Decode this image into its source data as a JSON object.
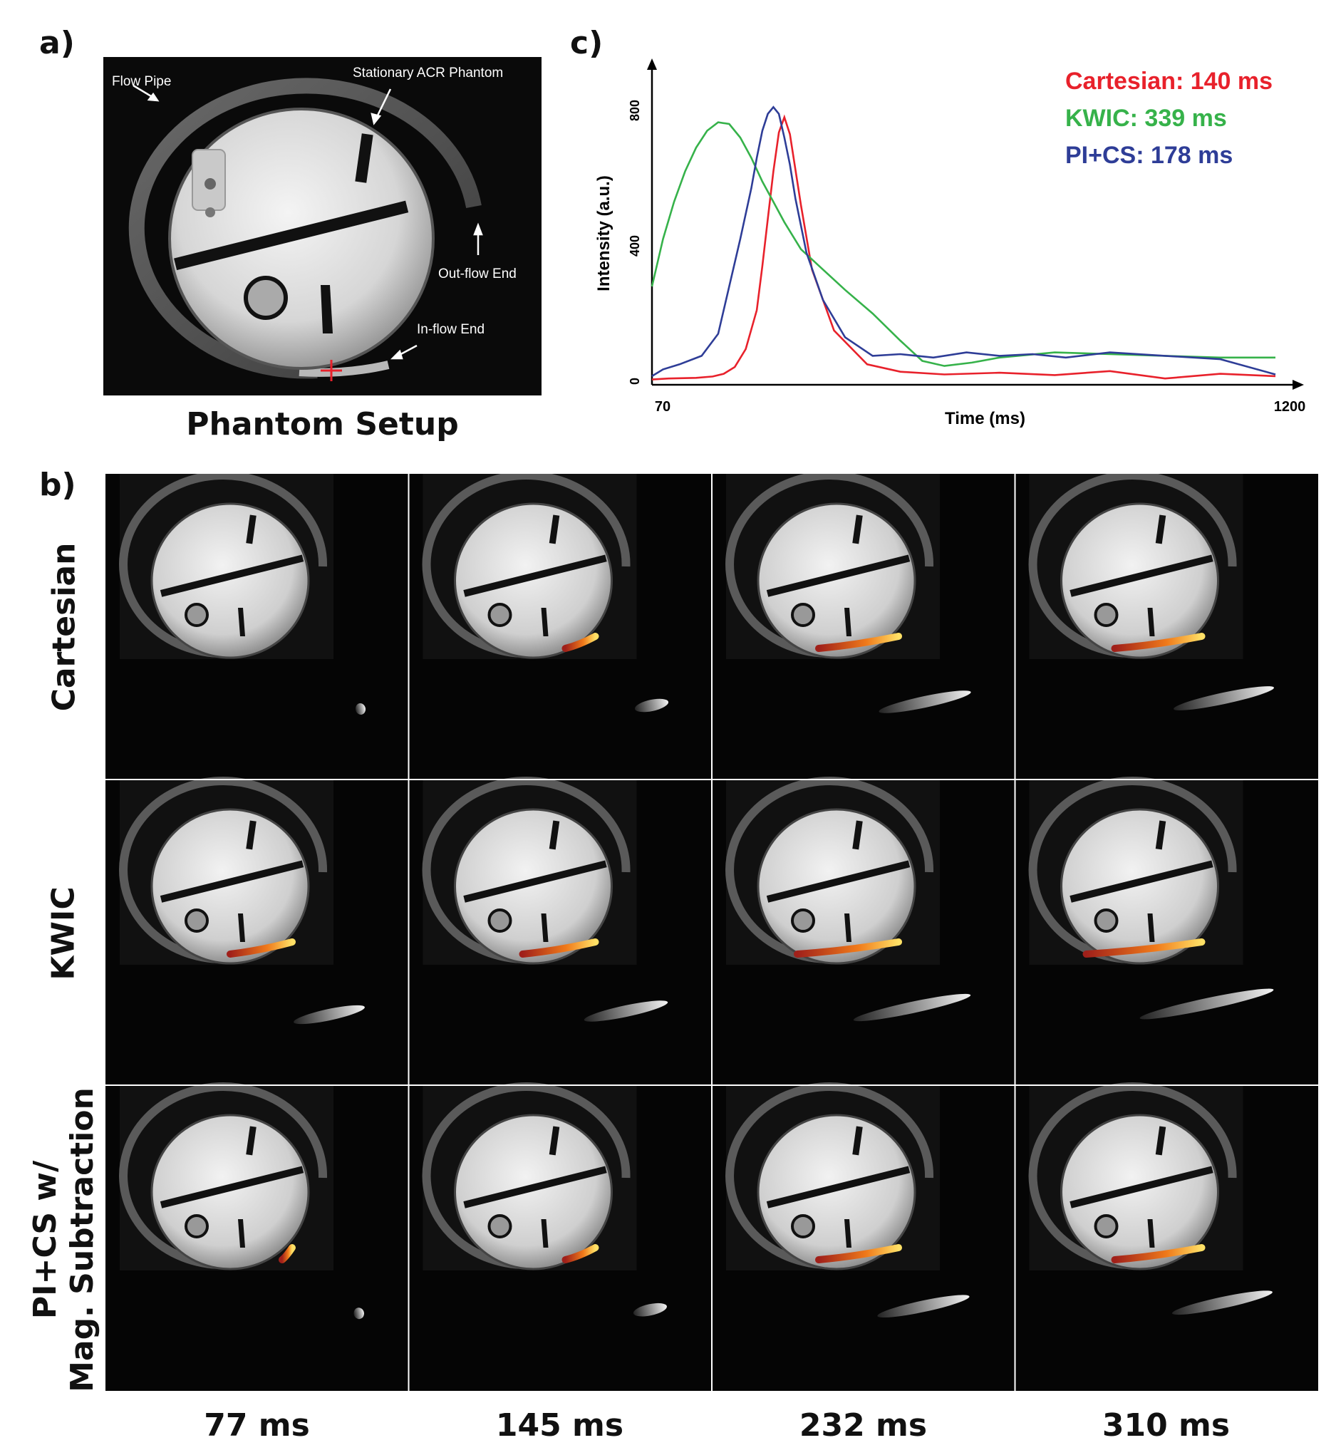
{
  "panels": {
    "a": "a)",
    "b": "b)",
    "c": "c)"
  },
  "phantom": {
    "caption": "Phantom Setup",
    "annotations": {
      "flow_pipe": "Flow Pipe",
      "stationary": "Stationary ACR Phantom",
      "outflow": "Out-flow End",
      "inflow": "In-flow End"
    }
  },
  "grid": {
    "rows": [
      "Cartesian",
      "KWIC",
      "PI+CS w/\nMag. Subtraction"
    ],
    "columns": [
      "77 ms",
      "145 ms",
      "232 ms",
      "310 ms"
    ]
  },
  "colors": {
    "cartesian": "#e8212b",
    "kwic": "#36b24a",
    "pics": "#2e3d97"
  },
  "chart_data": {
    "type": "line",
    "title": "",
    "xlabel": "Time (ms)",
    "ylabel": "Intensity (a.u.)",
    "xlim": [
      70,
      1200
    ],
    "ylim": [
      0,
      800
    ],
    "x_tick_labels": [
      "70",
      "1200"
    ],
    "y_tick_labels": [
      "0",
      "400",
      "800"
    ],
    "legend_position": "top-right",
    "series": [
      {
        "name": "Cartesian: 140 ms",
        "color": "#e8212b",
        "x": [
          70,
          100,
          150,
          180,
          200,
          220,
          240,
          260,
          270,
          280,
          290,
          300,
          310,
          320,
          340,
          360,
          400,
          460,
          520,
          600,
          700,
          800,
          900,
          1000,
          1100,
          1200
        ],
        "y": [
          5,
          8,
          10,
          14,
          22,
          42,
          95,
          210,
          340,
          480,
          620,
          735,
          780,
          730,
          520,
          330,
          150,
          50,
          28,
          20,
          25,
          18,
          30,
          8,
          22,
          15
        ]
      },
      {
        "name": "KWIC: 339 ms",
        "color": "#36b24a",
        "x": [
          70,
          90,
          110,
          130,
          150,
          170,
          190,
          210,
          230,
          250,
          270,
          290,
          310,
          340,
          380,
          420,
          470,
          520,
          560,
          600,
          650,
          700,
          800,
          900,
          1000,
          1100,
          1200
        ],
        "y": [
          280,
          420,
          530,
          620,
          690,
          740,
          765,
          760,
          720,
          660,
          590,
          530,
          470,
          390,
          330,
          270,
          200,
          120,
          60,
          45,
          55,
          70,
          85,
          80,
          75,
          70,
          70
        ]
      },
      {
        "name": "PI+CS: 178 ms",
        "color": "#2e3d97",
        "x": [
          70,
          90,
          120,
          160,
          190,
          210,
          230,
          250,
          260,
          270,
          280,
          290,
          300,
          310,
          320,
          330,
          350,
          380,
          420,
          470,
          520,
          580,
          640,
          700,
          760,
          820,
          900,
          1000,
          1100,
          1200
        ],
        "y": [
          15,
          35,
          50,
          75,
          140,
          280,
          420,
          570,
          660,
          740,
          790,
          810,
          790,
          720,
          640,
          540,
          380,
          240,
          130,
          75,
          80,
          70,
          85,
          75,
          80,
          70,
          85,
          75,
          65,
          20
        ]
      }
    ]
  }
}
